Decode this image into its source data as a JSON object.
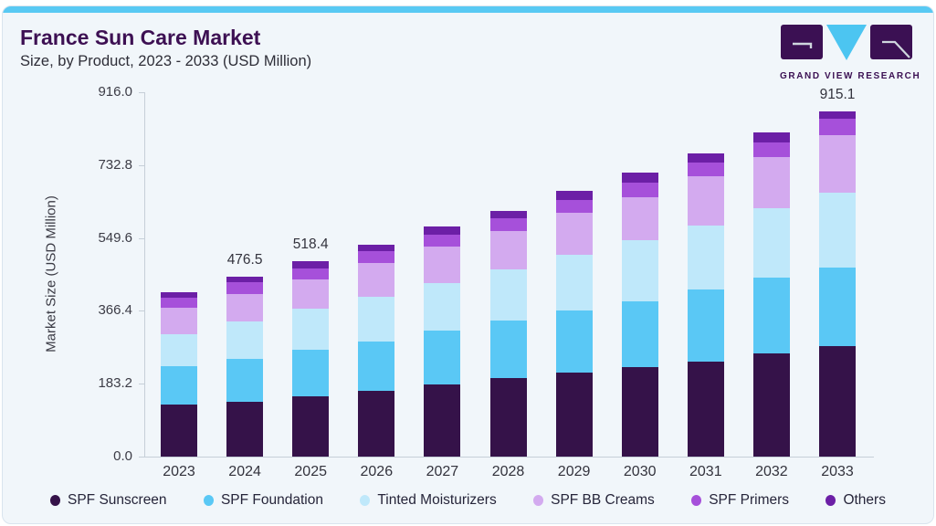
{
  "header": {
    "title": "France Sun Care Market",
    "subtitle": "Size, by Product, 2023 - 2033 (USD Million)"
  },
  "logo": {
    "brand": "GRAND VIEW RESEARCH"
  },
  "theme": {
    "card_background": "#f1f6fa",
    "accent_bar": "#58c9f3",
    "brand_purple": "#3b1053",
    "axis_line": "#c6cfd8"
  },
  "chart_data": {
    "type": "bar",
    "stacked": true,
    "title": "France Sun Care Market Size, by Product, 2023 - 2033 (USD Million)",
    "xlabel": "",
    "ylabel": "Market Size (USD Million)",
    "ylim": [
      0,
      916
    ],
    "grid": false,
    "legend_position": "bottom",
    "y_ticks": [
      0.0,
      183.2,
      366.4,
      549.6,
      732.8,
      916.0
    ],
    "y_tick_labels": [
      "0.0",
      "183.2",
      "366.4",
      "549.6",
      "732.8",
      "916.0"
    ],
    "categories": [
      "2023",
      "2024",
      "2025",
      "2026",
      "2027",
      "2028",
      "2029",
      "2030",
      "2031",
      "2032",
      "2033"
    ],
    "bar_total_labels": [
      "",
      "476.5",
      "518.4",
      "",
      "",
      "",
      "",
      "",
      "",
      "",
      "915.1"
    ],
    "labeled_totals": {
      "2024": 476.5,
      "2025": 518.4,
      "2033": 915.1
    },
    "series": [
      {
        "name": "SPF Sunscreen",
        "color": "#351249",
        "values": [
          137.5,
          146.2,
          160.3,
          174.7,
          190.7,
          208.6,
          223.1,
          237.6,
          252.9,
          273.0,
          293.3
        ]
      },
      {
        "name": "SPF Foundation",
        "color": "#5ac8f5",
        "values": [
          102.6,
          112.8,
          122.1,
          130.7,
          142.8,
          153.2,
          165.3,
          175.0,
          189.5,
          201.8,
          208.1
        ]
      },
      {
        "name": "Tinted Moisturizers",
        "color": "#bfe8fa",
        "values": [
          85.4,
          100.4,
          109.1,
          119.3,
          127.5,
          135.5,
          146.9,
          161.4,
          171.8,
          183.9,
          199.2
        ]
      },
      {
        "name": "SPF BB Creams",
        "color": "#d3aaef",
        "values": [
          69.5,
          72.5,
          78.7,
          88.8,
          95.1,
          100.9,
          111.3,
          114.5,
          130.7,
          137.0,
          151.7
        ]
      },
      {
        "name": "SPF Primers",
        "color": "#a650da",
        "values": [
          27.3,
          30.0,
          29.7,
          30.5,
          33.9,
          34.6,
          33.9,
          38.7,
          36.3,
          38.0,
          44.3
        ]
      },
      {
        "name": "Others",
        "color": "#6c1fa6",
        "values": [
          14.5,
          14.6,
          18.5,
          17.9,
          20.3,
          19.4,
          24.2,
          25.9,
          22.7,
          26.6,
          18.5
        ]
      }
    ]
  }
}
